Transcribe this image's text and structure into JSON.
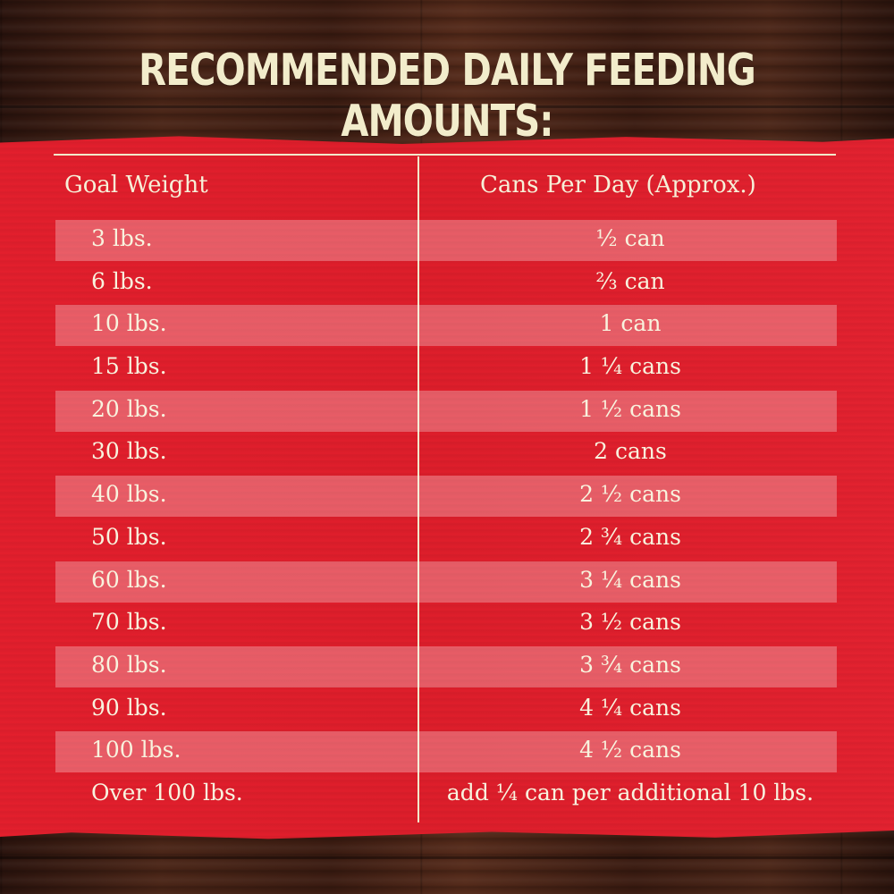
{
  "title": "RECOMMENDED DAILY FEEDING AMOUNTS:",
  "table": {
    "headers": {
      "goal_weight": "Goal Weight",
      "cans_per_day": "Cans Per Day (Approx.)"
    },
    "rows": [
      {
        "weight": "3 lbs.",
        "cans": "½ can"
      },
      {
        "weight": "6 lbs.",
        "cans": "⅔ can"
      },
      {
        "weight": "10 lbs.",
        "cans": "1 can"
      },
      {
        "weight": "15 lbs.",
        "cans": "1 ¼ cans"
      },
      {
        "weight": "20 lbs.",
        "cans": "1 ½ cans"
      },
      {
        "weight": "30 lbs.",
        "cans": "2 cans"
      },
      {
        "weight": "40 lbs.",
        "cans": "2 ½ cans"
      },
      {
        "weight": "50 lbs.",
        "cans": "2 ¾ cans"
      },
      {
        "weight": "60 lbs.",
        "cans": "3 ¼ cans"
      },
      {
        "weight": "70 lbs.",
        "cans": "3 ½ cans"
      },
      {
        "weight": "80 lbs.",
        "cans": "3 ¾ cans"
      },
      {
        "weight": "90 lbs.",
        "cans": "4 ¼ cans"
      },
      {
        "weight": "100 lbs.",
        "cans": "4 ½ cans"
      },
      {
        "weight": "Over 100 lbs.",
        "cans": "add ¼ can per additional 10 lbs."
      }
    ]
  },
  "colors": {
    "banner_red": "#e41f2d",
    "cream_text": "#f2eccb",
    "wood_brown": "#3a1d14"
  }
}
